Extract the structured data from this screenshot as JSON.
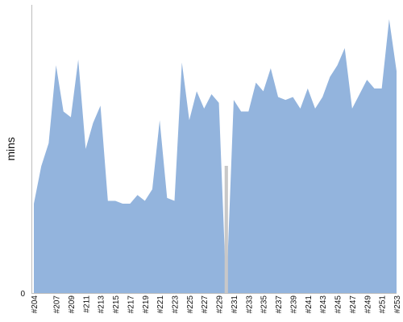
{
  "chart_data": {
    "type": "area",
    "ylabel": "mins",
    "y_ticks": [
      {
        "value": 0,
        "label": "0"
      }
    ],
    "ylim": [
      0,
      100
    ],
    "grid": false,
    "x_tick_labels": [
      "#204",
      "#207",
      "#209",
      "#211",
      "#213",
      "#215",
      "#217",
      "#219",
      "#221",
      "#223",
      "#225",
      "#227",
      "#229",
      "#231",
      "#233",
      "#235",
      "#237",
      "#239",
      "#241",
      "#243",
      "#245",
      "#247",
      "#249",
      "#251",
      "#253"
    ],
    "builds": [
      "#204",
      "#205",
      "#206",
      "#207",
      "#208",
      "#209",
      "#210",
      "#211",
      "#212",
      "#213",
      "#214",
      "#215",
      "#216",
      "#217",
      "#218",
      "#219",
      "#220",
      "#221",
      "#222",
      "#223",
      "#224",
      "#225",
      "#226",
      "#227",
      "#228",
      "#229",
      "#230",
      "#231",
      "#232",
      "#233",
      "#234",
      "#235",
      "#236",
      "#237",
      "#238",
      "#239",
      "#240",
      "#241",
      "#242",
      "#243",
      "#244",
      "#245",
      "#246",
      "#247",
      "#248",
      "#249",
      "#250",
      "#251",
      "#252",
      "#253"
    ],
    "series": [
      {
        "color": "#93b4dd",
        "values": [
          31,
          44,
          52,
          79,
          63,
          61,
          81,
          50,
          59,
          65,
          32,
          32,
          31,
          31,
          34,
          32,
          36,
          60,
          33,
          32,
          80,
          60,
          70,
          64,
          69,
          66,
          0,
          67,
          63,
          63,
          73,
          70,
          78,
          68,
          67,
          68,
          64,
          71,
          64,
          68,
          75,
          79,
          85,
          64,
          69,
          74,
          71,
          71,
          95,
          77
        ]
      }
    ],
    "failed_builds": [
      "#230"
    ],
    "failed_color": "#c8c8c8"
  }
}
